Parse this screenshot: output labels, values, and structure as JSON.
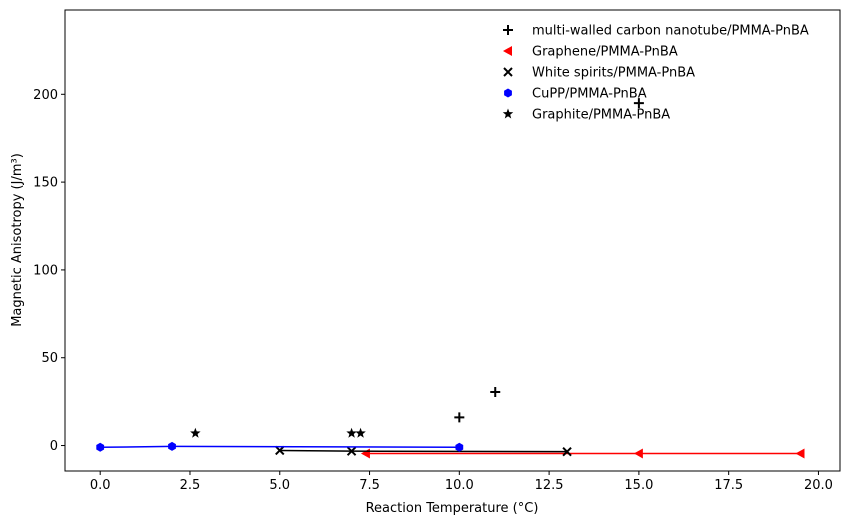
{
  "chart_data": {
    "type": "scatter",
    "xlabel": "Reaction Temperature (°C)",
    "ylabel": "Magnetic Anisotropy (J/m³)",
    "xlim": [
      -0.98,
      20.6
    ],
    "ylim": [
      -14.5,
      248
    ],
    "x_ticks": [
      "0.0",
      "2.5",
      "5.0",
      "7.5",
      "10.0",
      "12.5",
      "15.0",
      "17.5",
      "20.0"
    ],
    "x_tick_values": [
      0,
      2.5,
      5,
      7.5,
      10,
      12.5,
      15,
      17.5,
      20
    ],
    "y_ticks": [
      "0",
      "50",
      "100",
      "150",
      "200"
    ],
    "y_tick_values": [
      0,
      50,
      100,
      150,
      200
    ],
    "grid": false,
    "legend_position": "top-right",
    "series": [
      {
        "name": "multi-walled carbon nanotube/PMMA-PnBA",
        "marker": "plus",
        "color": "#000000",
        "line": false,
        "points": [
          [
            10,
            16
          ],
          [
            11,
            30.5
          ],
          [
            15,
            195
          ]
        ]
      },
      {
        "name": "Graphene/PMMA-PnBA",
        "marker": "triangle-left",
        "color": "#ff0000",
        "line": true,
        "points": [
          [
            7.4,
            -4.5
          ],
          [
            15,
            -4.5
          ],
          [
            19.5,
            -4.5
          ]
        ]
      },
      {
        "name": "White spirits/PMMA-PnBA",
        "marker": "x",
        "color": "#000000",
        "line": true,
        "points": [
          [
            5,
            -2.8
          ],
          [
            7,
            -3.2
          ],
          [
            13,
            -3.5
          ]
        ]
      },
      {
        "name": "CuPP/PMMA-PnBA",
        "marker": "hexagon",
        "color": "#0000ff",
        "line": true,
        "points": [
          [
            0,
            -1
          ],
          [
            2,
            -0.5
          ],
          [
            10,
            -1
          ]
        ]
      },
      {
        "name": " Graphite/PMMA-PnBA",
        "marker": "star",
        "color": "#000000",
        "line": false,
        "points": [
          [
            2.65,
            7
          ],
          [
            7,
            7
          ],
          [
            7.25,
            7
          ]
        ]
      }
    ]
  }
}
